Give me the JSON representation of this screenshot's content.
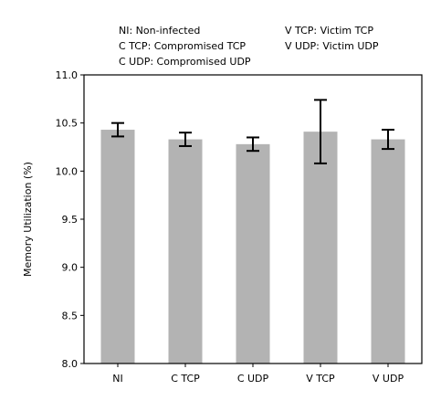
{
  "legend": {
    "left": [
      "NI: Non-infected",
      "C TCP: Compromised TCP",
      "C UDP: Compromised UDP"
    ],
    "right": [
      "V TCP: Victim TCP",
      "V UDP: Victim UDP"
    ]
  },
  "chart_data": {
    "type": "bar",
    "title": "",
    "xlabel": "",
    "ylabel": "Memory Utilization (%)",
    "categories": [
      "NI",
      "C TCP",
      "C UDP",
      "V TCP",
      "V UDP"
    ],
    "values": [
      10.43,
      10.33,
      10.28,
      10.41,
      10.33
    ],
    "error": [
      0.07,
      0.07,
      0.07,
      0.33,
      0.1
    ],
    "ylim": [
      8.0,
      11.0
    ],
    "yticks": [
      "8.0",
      "8.5",
      "9.0",
      "9.5",
      "10.0",
      "10.5",
      "11.0"
    ],
    "bar_color": "#b3b3b3",
    "errorbar_color": "#000000",
    "grid": false,
    "legend_placement": "top"
  }
}
